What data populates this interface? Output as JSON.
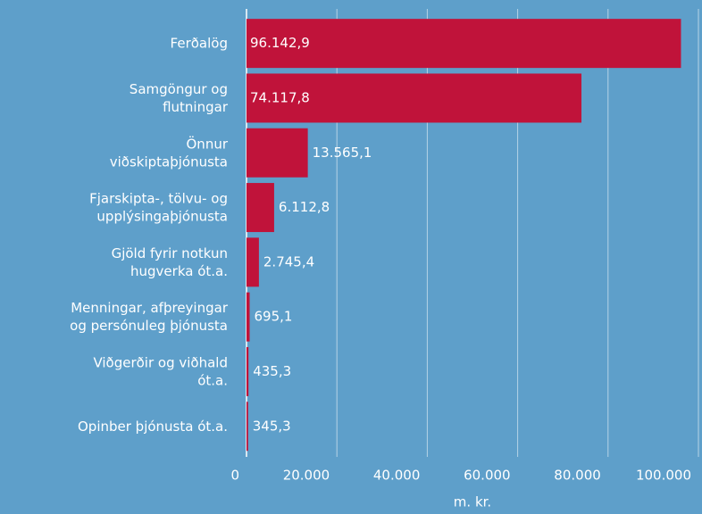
{
  "chart_data": {
    "type": "bar",
    "orientation": "horizontal",
    "categories": [
      [
        "Ferðalög"
      ],
      [
        "Samgöngur og",
        "flutningar"
      ],
      [
        "Önnur",
        "viðskiptaþjónusta"
      ],
      [
        "Fjarskipta-, tölvu- og",
        "upplýsingaþjónusta"
      ],
      [
        "Gjöld fyrir notkun",
        "hugverka ót.a."
      ],
      [
        "Menningar, afþreyingar",
        "og persónuleg þjónusta"
      ],
      [
        "Viðgerðir og viðhald",
        "ót.a."
      ],
      [
        "Opinber þjónusta ót.a."
      ]
    ],
    "values": [
      96142.9,
      74117.8,
      13565.1,
      6112.8,
      2745.4,
      695.1,
      435.3,
      345.3
    ],
    "value_labels": [
      "96.142,9",
      "74.117,8",
      "13.565,1",
      "6.112,8",
      "2.745,4",
      "695,1",
      "435,3",
      "345,3"
    ],
    "color": "#c0133a",
    "xlabel": "m. kr.",
    "xlim": [
      0,
      100000
    ],
    "xticks": [
      0,
      {
        "value": 20000,
        "label": "20.000"
      },
      {
        "value": 40000,
        "label": "40.000"
      },
      {
        "value": 60000,
        "label": "60.000"
      },
      {
        "value": 80000,
        "label": "80.000"
      },
      {
        "value": 100000,
        "label": "100.000"
      }
    ],
    "grid": true
  }
}
